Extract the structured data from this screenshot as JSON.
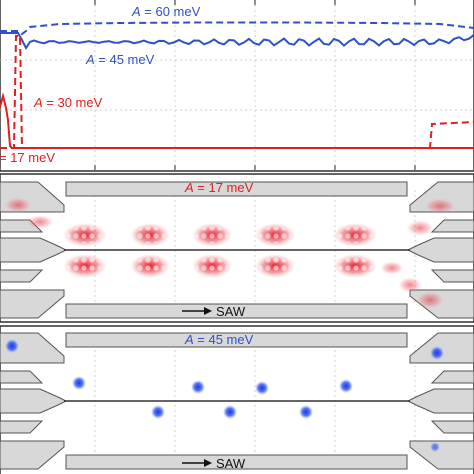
{
  "colors": {
    "blue": "#3050c8",
    "red": "#e02020",
    "gray_fill": "#d8d8d8",
    "gray_stroke": "#555555",
    "grid": "#bbbbbb",
    "dot_blue": "#2a4fe0",
    "blob_red": "#e8202a"
  },
  "top_panel": {
    "label_a60": {
      "sym": "A",
      "text": " = 60 meV"
    },
    "label_a45": {
      "sym": "A",
      "text": " = 45 meV"
    },
    "label_a30": {
      "sym": "A",
      "text": " = 30 meV"
    },
    "label_a17": {
      "text": "= 17 meV"
    },
    "legend_styles": {
      "solid": "solid-line",
      "dashed": "dashed-line"
    }
  },
  "middle_panel": {
    "title": {
      "sym": "A",
      "text": " = 17 meV"
    },
    "saw_label": "SAW",
    "blob_count": 5
  },
  "bottom_panel": {
    "title": {
      "sym": "A",
      "text": " = 45 meV"
    },
    "saw_label": "SAW",
    "dot_count": 10
  }
}
